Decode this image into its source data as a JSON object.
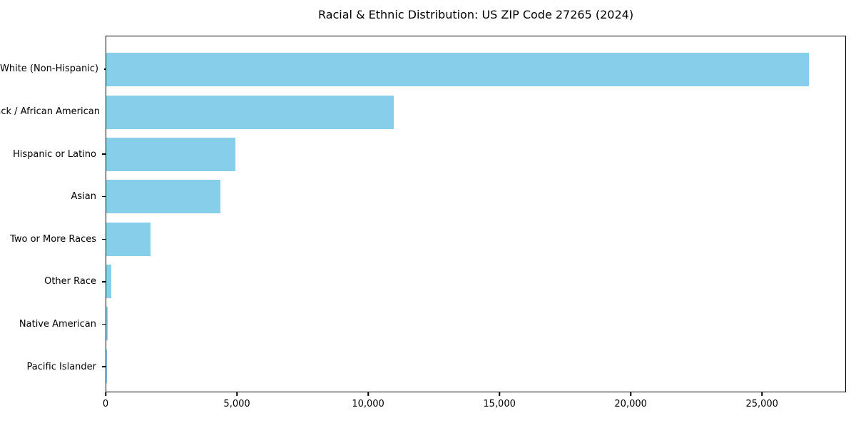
{
  "chart_data": {
    "type": "bar",
    "orientation": "horizontal",
    "title": "Racial & Ethnic Distribution: US ZIP Code 27265 (2024)",
    "categories": [
      "White (Non-Hispanic)",
      "Black / African American",
      "Hispanic or Latino",
      "Asian",
      "Two or More Races",
      "Other Race",
      "Native American",
      "Pacific Islander"
    ],
    "values": [
      26820,
      10980,
      4930,
      4360,
      1700,
      200,
      55,
      15
    ],
    "xlabel": "",
    "ylabel": "",
    "xlim": [
      0,
      28200
    ],
    "xticks": [
      0,
      5000,
      10000,
      15000,
      20000,
      25000
    ],
    "xtick_labels": [
      "0",
      "5,000",
      "10,000",
      "15,000",
      "20,000",
      "25,000"
    ],
    "bar_color": "#87CEEB",
    "frame_color": "#000000",
    "background_color": "#FFFFFF",
    "grid": false,
    "legend": null
  }
}
